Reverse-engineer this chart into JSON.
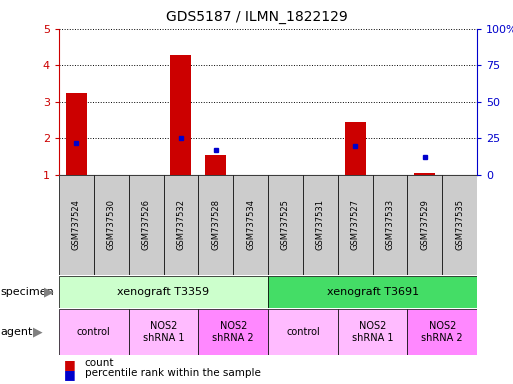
{
  "title": "GDS5187 / ILMN_1822129",
  "samples": [
    "GSM737524",
    "GSM737530",
    "GSM737526",
    "GSM737532",
    "GSM737528",
    "GSM737534",
    "GSM737525",
    "GSM737531",
    "GSM737527",
    "GSM737533",
    "GSM737529",
    "GSM737535"
  ],
  "count_values": [
    3.25,
    1.0,
    1.0,
    4.28,
    1.55,
    1.0,
    1.0,
    1.0,
    2.45,
    1.0,
    1.05,
    1.0
  ],
  "percentile_values": [
    22,
    0,
    0,
    25,
    17,
    0,
    0,
    0,
    20,
    0,
    12,
    0
  ],
  "ylim_left": [
    1,
    5
  ],
  "ylim_right": [
    0,
    100
  ],
  "yticks_left": [
    1,
    2,
    3,
    4,
    5
  ],
  "yticks_right": [
    0,
    25,
    50,
    75,
    100
  ],
  "ytick_labels_right": [
    "0",
    "25",
    "50",
    "75",
    "100%"
  ],
  "bar_color": "#cc0000",
  "percentile_color": "#0000cc",
  "specimen_groups": [
    {
      "label": "xenograft T3359",
      "start": 0,
      "end": 5,
      "color": "#ccffcc"
    },
    {
      "label": "xenograft T3691",
      "start": 6,
      "end": 11,
      "color": "#44dd66"
    }
  ],
  "agent_groups": [
    {
      "label": "control",
      "start": 0,
      "end": 1,
      "color": "#ffbbff"
    },
    {
      "label": "NOS2\nshRNA 1",
      "start": 2,
      "end": 3,
      "color": "#ffbbff"
    },
    {
      "label": "NOS2\nshRNA 2",
      "start": 4,
      "end": 5,
      "color": "#ff88ff"
    },
    {
      "label": "control",
      "start": 6,
      "end": 7,
      "color": "#ffbbff"
    },
    {
      "label": "NOS2\nshRNA 1",
      "start": 8,
      "end": 9,
      "color": "#ffbbff"
    },
    {
      "label": "NOS2\nshRNA 2",
      "start": 10,
      "end": 11,
      "color": "#ff88ff"
    }
  ],
  "tick_label_color_left": "#cc0000",
  "tick_label_color_right": "#0000cc",
  "xlabel_specimen": "specimen",
  "xlabel_agent": "agent",
  "legend_count": "count",
  "legend_percentile": "percentile rank within the sample",
  "background_color": "#ffffff",
  "xtick_bg_color": "#cccccc"
}
